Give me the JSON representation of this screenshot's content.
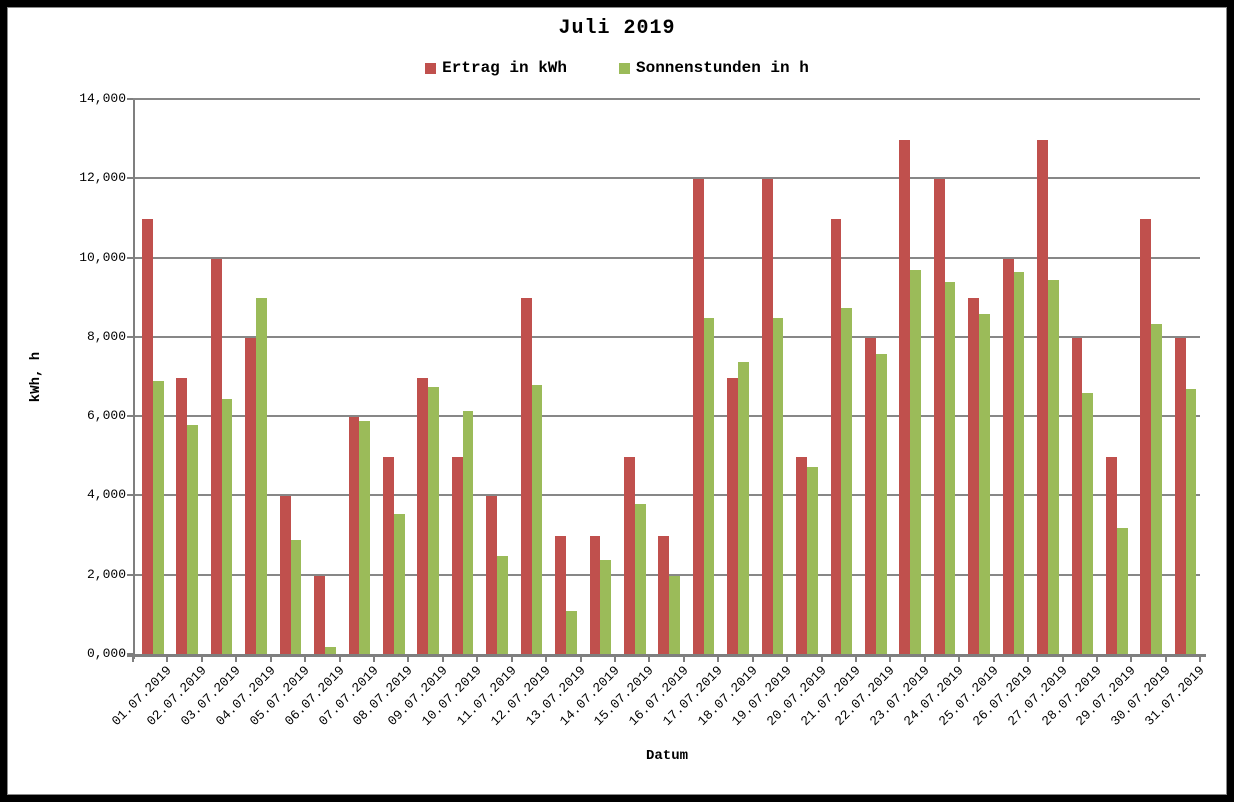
{
  "chart_data": {
    "type": "bar",
    "title": "Juli 2019",
    "xlabel": "Datum",
    "ylabel": "kWh, h",
    "grid": true,
    "legend_position": "top",
    "ylim": [
      0,
      14
    ],
    "y_tick_values": [
      0,
      2,
      4,
      6,
      8,
      10,
      12,
      14
    ],
    "y_tick_labels": [
      "0,000",
      "2,000",
      "4,000",
      "6,000",
      "8,000",
      "10,000",
      "12,000",
      "14,000"
    ],
    "categories": [
      "01.07.2019",
      "02.07.2019",
      "03.07.2019",
      "04.07.2019",
      "05.07.2019",
      "06.07.2019",
      "07.07.2019",
      "08.07.2019",
      "09.07.2019",
      "10.07.2019",
      "11.07.2019",
      "12.07.2019",
      "13.07.2019",
      "14.07.2019",
      "15.07.2019",
      "16.07.2019",
      "17.07.2019",
      "18.07.2019",
      "19.07.2019",
      "20.07.2019",
      "21.07.2019",
      "22.07.2019",
      "23.07.2019",
      "24.07.2019",
      "25.07.2019",
      "26.07.2019",
      "27.07.2019",
      "28.07.2019",
      "29.07.2019",
      "30.07.2019",
      "31.07.2019"
    ],
    "series": [
      {
        "name": "Ertrag in kWh",
        "color": "#C0504D",
        "values": [
          11,
          7,
          10,
          8,
          4,
          2,
          6,
          5,
          7,
          5,
          4,
          9,
          3,
          3,
          5,
          3,
          12,
          7,
          12,
          5,
          11,
          8,
          13,
          12,
          9,
          10,
          13,
          8,
          5,
          11,
          8
        ]
      },
      {
        "name": "Sonnenstunden in h",
        "color": "#9BBB59",
        "values": [
          6.9,
          5.8,
          6.45,
          9.0,
          2.9,
          0.2,
          5.9,
          3.55,
          6.75,
          6.15,
          2.5,
          6.8,
          1.1,
          2.4,
          3.8,
          2.0,
          8.5,
          7.4,
          8.5,
          4.75,
          8.75,
          7.6,
          9.7,
          9.4,
          8.6,
          9.65,
          9.45,
          6.6,
          3.2,
          8.35,
          6.7
        ]
      }
    ]
  },
  "frame_colors": {
    "outer_border": "#000000",
    "inner_border": "#8a8a8a",
    "gridline": "#878787",
    "axis": "#7f7f7f",
    "background": "#ffffff"
  }
}
